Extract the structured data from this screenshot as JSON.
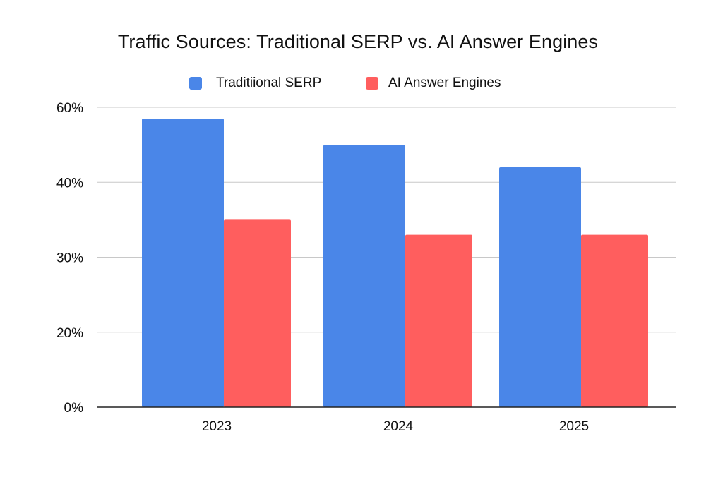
{
  "chart_data": {
    "type": "bar",
    "title": "Traffic Sources: Traditional SERP vs. AI Answer Engines",
    "xlabel": "",
    "ylabel": "",
    "categories": [
      "2023",
      "2024",
      "2025"
    ],
    "series": [
      {
        "name": "Traditiional SERP",
        "color": "#4A86E8",
        "values": [
          57,
          50,
          44
        ]
      },
      {
        "name": "AI Answer Engines",
        "color": "#FF5E5E",
        "values": [
          35,
          33,
          33
        ]
      }
    ],
    "yticks": [
      0,
      20,
      30,
      40,
      60
    ],
    "ytick_labels": [
      "0%",
      "20%",
      "30%",
      "40%",
      "60%"
    ],
    "axis_scale": "piecewise: ticks equally spaced although labelled 0%, 20%, 30%, 40%, 60%",
    "ylim": [
      0,
      60
    ],
    "grid": true,
    "legend_position": "top-center"
  }
}
